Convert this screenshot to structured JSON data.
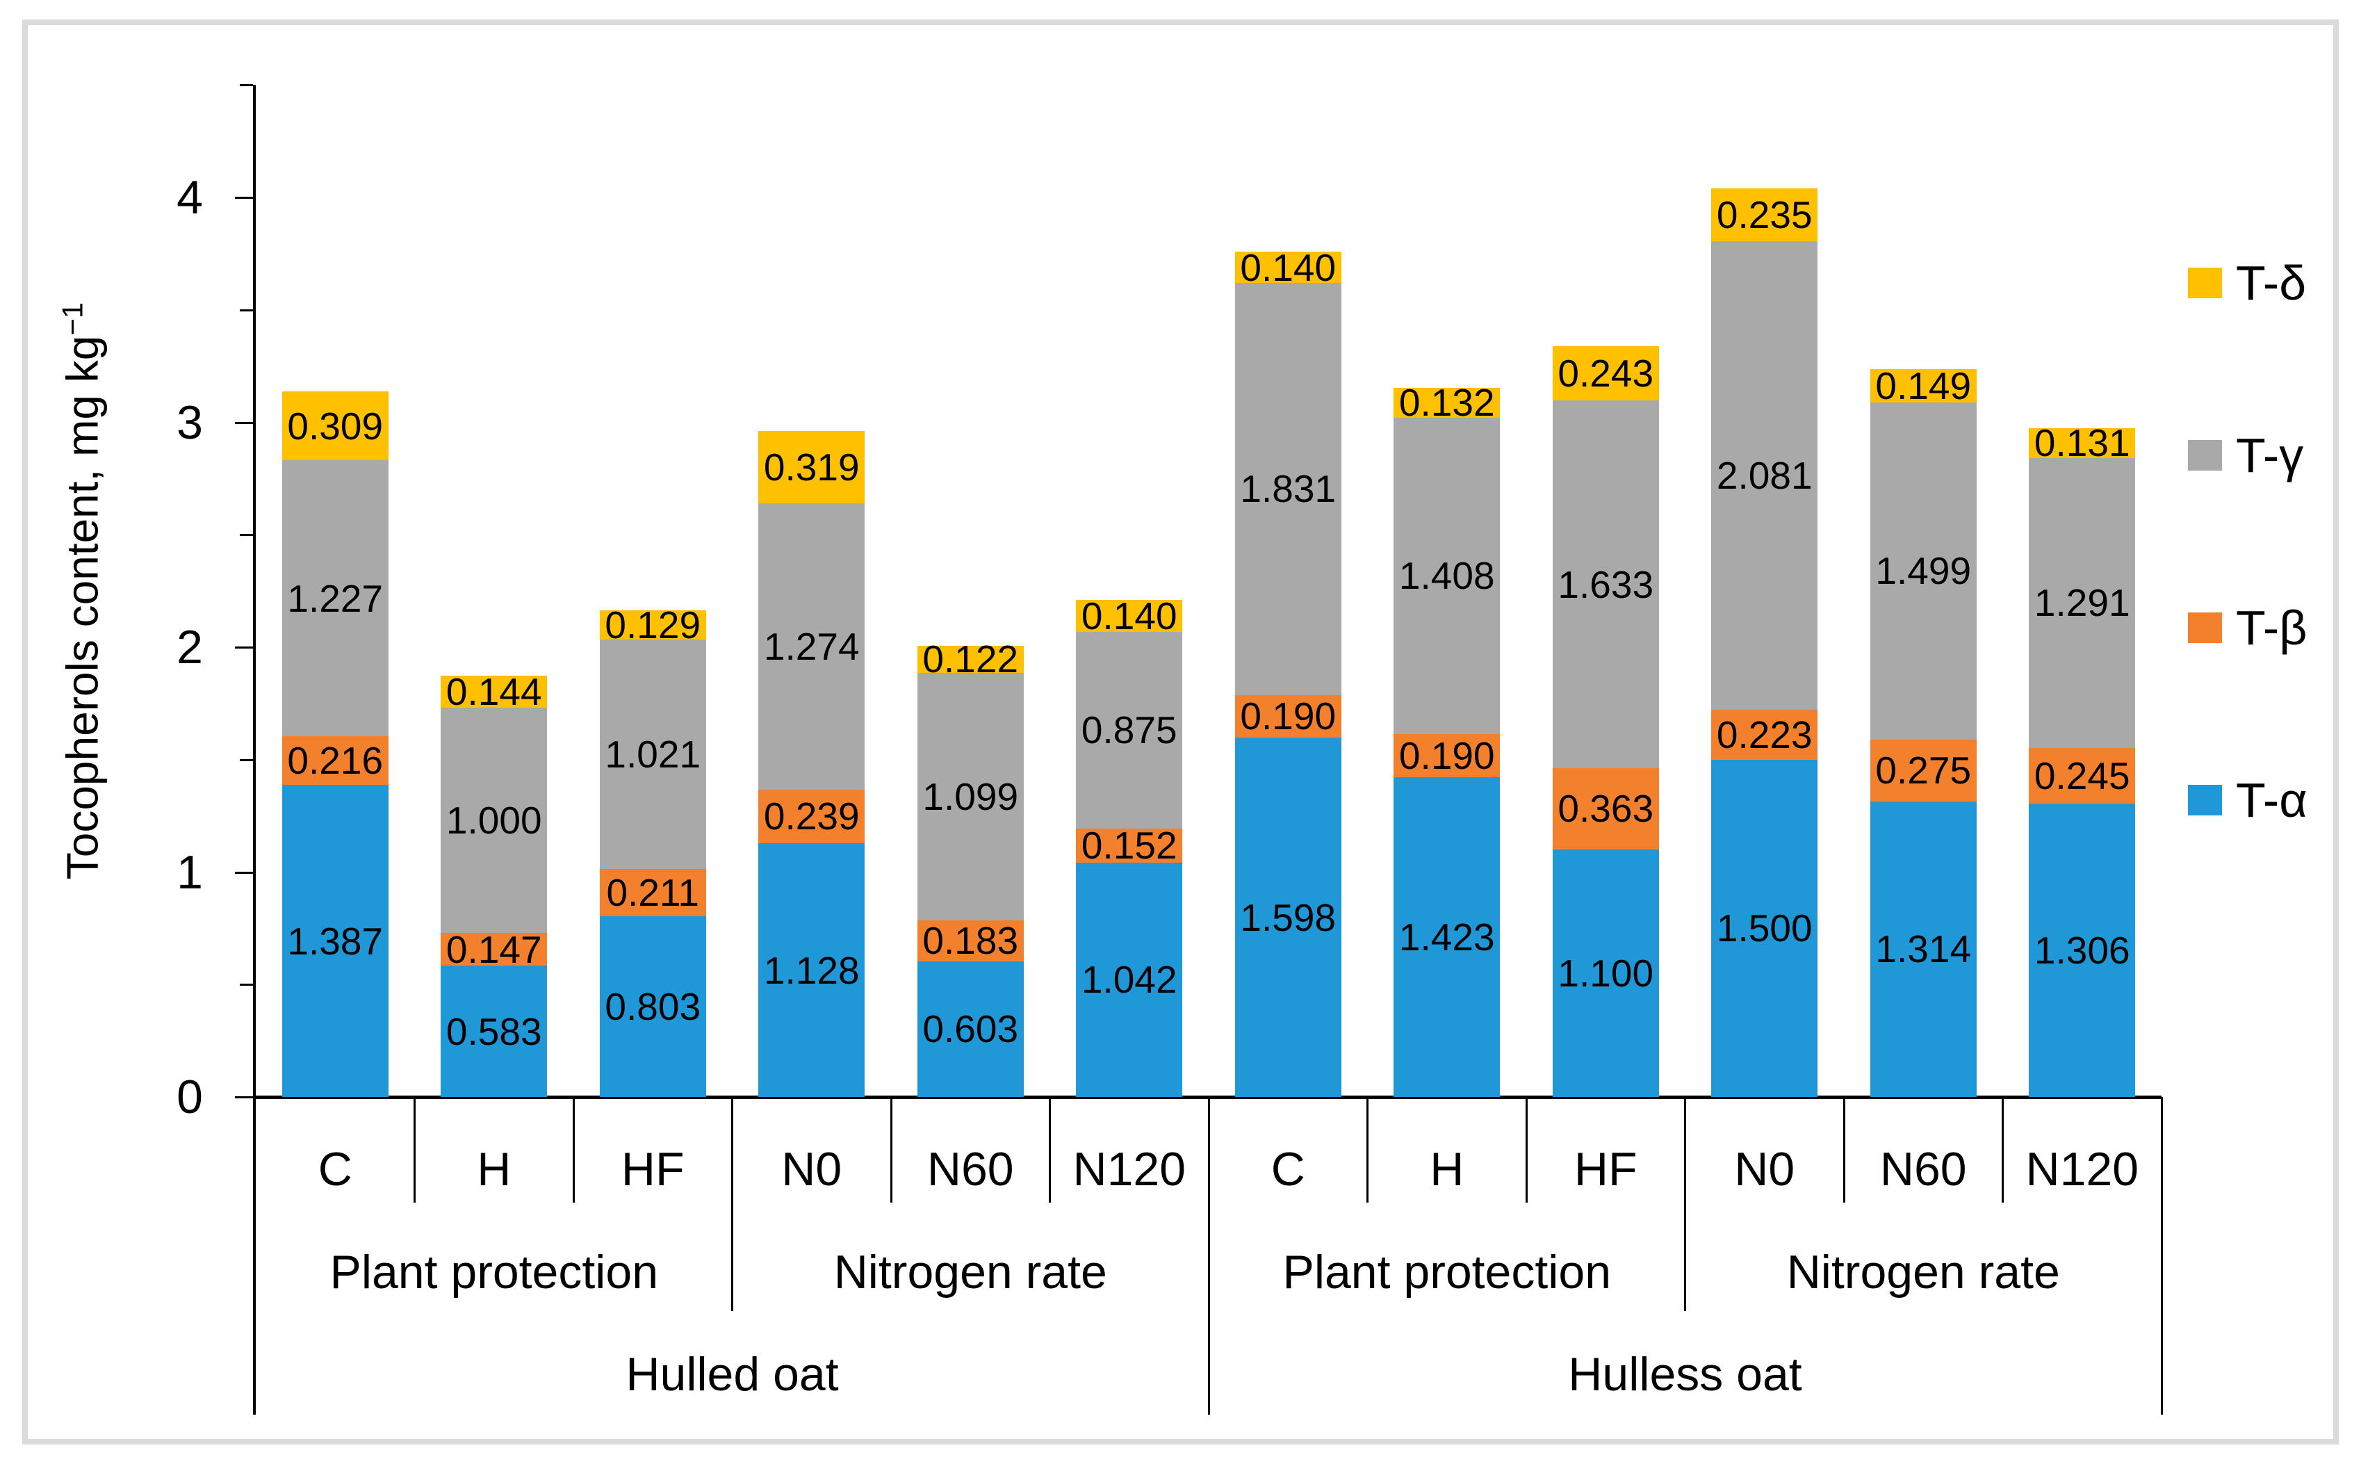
{
  "chart_data": {
    "type": "bar",
    "stacked": true,
    "title": "",
    "ylabel": "Tocopherols content, mg kg⁻¹",
    "ylabel_main": "Tocopherols content, mg kg",
    "ylabel_sup": "−1",
    "ylim": [
      0,
      4.5
    ],
    "yticks": [
      0,
      1,
      2,
      3,
      4
    ],
    "minor_tick_step": 0.5,
    "grid": false,
    "legend_position": "right",
    "legend": [
      {
        "name": "T-δ",
        "color": "#FFC000"
      },
      {
        "name": "T-γ",
        "color": "#A9A9A9"
      },
      {
        "name": "T-β",
        "color": "#F2802D"
      },
      {
        "name": "T-α",
        "color": "#2097D6"
      }
    ],
    "series_order_bottom_to_top": [
      "T-α",
      "T-β",
      "T-γ",
      "T-δ"
    ],
    "series_colors": {
      "T-α": "#2097D6",
      "T-β": "#F2802D",
      "T-γ": "#A9A9A9",
      "T-δ": "#FFC000"
    },
    "groups": [
      {
        "label": "Hulled oat",
        "sections": [
          {
            "label": "Plant protection",
            "categories": [
              "C",
              "H",
              "HF"
            ]
          },
          {
            "label": "Nitrogen rate",
            "categories": [
              "N0",
              "N60",
              "N120"
            ]
          }
        ]
      },
      {
        "label": "Hulless oat",
        "sections": [
          {
            "label": "Plant protection",
            "categories": [
              "C",
              "H",
              "HF"
            ]
          },
          {
            "label": "Nitrogen rate",
            "categories": [
              "N0",
              "N60",
              "N120"
            ]
          }
        ]
      }
    ],
    "bars": [
      {
        "group": "Hulled oat",
        "section": "Plant protection",
        "category": "C",
        "values": {
          "T-α": "1.387",
          "T-β": "0.216",
          "T-γ": "1.227",
          "T-δ": "0.309"
        }
      },
      {
        "group": "Hulled oat",
        "section": "Plant protection",
        "category": "H",
        "values": {
          "T-α": "0.583",
          "T-β": "0.147",
          "T-γ": "1.000",
          "T-δ": "0.144"
        }
      },
      {
        "group": "Hulled oat",
        "section": "Plant protection",
        "category": "HF",
        "values": {
          "T-α": "0.803",
          "T-β": "0.211",
          "T-γ": "1.021",
          "T-δ": "0.129"
        }
      },
      {
        "group": "Hulled oat",
        "section": "Nitrogen rate",
        "category": "N0",
        "values": {
          "T-α": "1.128",
          "T-β": "0.239",
          "T-γ": "1.274",
          "T-δ": "0.319"
        }
      },
      {
        "group": "Hulled oat",
        "section": "Nitrogen rate",
        "category": "N60",
        "values": {
          "T-α": "0.603",
          "T-β": "0.183",
          "T-γ": "1.099",
          "T-δ": "0.122"
        }
      },
      {
        "group": "Hulled oat",
        "section": "Nitrogen rate",
        "category": "N120",
        "values": {
          "T-α": "1.042",
          "T-β": "0.152",
          "T-γ": "0.875",
          "T-δ": "0.140"
        }
      },
      {
        "group": "Hulless oat",
        "section": "Plant protection",
        "category": "C",
        "values": {
          "T-α": "1.598",
          "T-β": "0.190",
          "T-γ": "1.831",
          "T-δ": "0.140"
        }
      },
      {
        "group": "Hulless oat",
        "section": "Plant protection",
        "category": "H",
        "values": {
          "T-α": "1.423",
          "T-β": "0.190",
          "T-γ": "1.408",
          "T-δ": "0.132"
        }
      },
      {
        "group": "Hulless oat",
        "section": "Plant protection",
        "category": "HF",
        "values": {
          "T-α": "1.100",
          "T-β": "0.363",
          "T-γ": "1.633",
          "T-δ": "0.243"
        }
      },
      {
        "group": "Hulless oat",
        "section": "Nitrogen rate",
        "category": "N0",
        "values": {
          "T-α": "1.500",
          "T-β": "0.223",
          "T-γ": "2.081",
          "T-δ": "0.235"
        }
      },
      {
        "group": "Hulless oat",
        "section": "Nitrogen rate",
        "category": "N60",
        "values": {
          "T-α": "1.314",
          "T-β": "0.275",
          "T-γ": "1.499",
          "T-δ": "0.149"
        }
      },
      {
        "group": "Hulless oat",
        "section": "Nitrogen rate",
        "category": "N120",
        "values": {
          "T-α": "1.306",
          "T-β": "0.245",
          "T-γ": "1.291",
          "T-δ": "0.131"
        }
      }
    ]
  }
}
